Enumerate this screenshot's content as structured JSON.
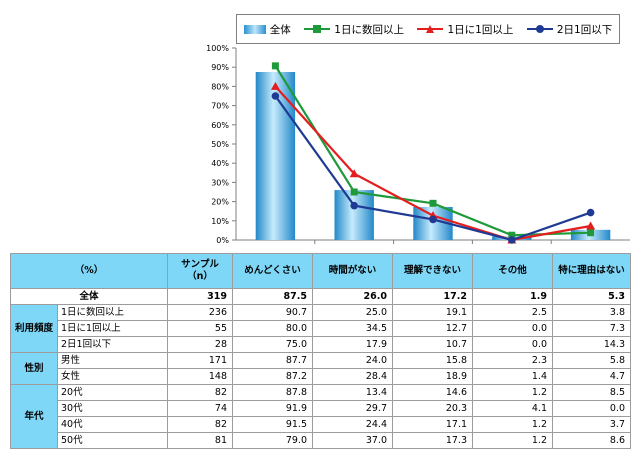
{
  "chart_data": {
    "type": "bar",
    "categories": [
      "めんどくさい",
      "時間がない",
      "理解できない",
      "その他",
      "特に理由はない"
    ],
    "ylim": [
      0,
      100
    ],
    "yticks": [
      "0%",
      "10%",
      "20%",
      "30%",
      "40%",
      "50%",
      "60%",
      "70%",
      "80%",
      "90%",
      "100%"
    ],
    "bar_series": {
      "name": "全体",
      "values": [
        87.5,
        26.0,
        17.2,
        1.9,
        5.3
      ]
    },
    "series": [
      {
        "name": "1日に数回以上",
        "values": [
          90.7,
          25.0,
          19.1,
          2.5,
          3.8
        ],
        "color": "#1e9a3a",
        "marker": "square"
      },
      {
        "name": "1日に1回以上",
        "values": [
          80.0,
          34.5,
          12.7,
          0.0,
          7.3
        ],
        "color": "#e41e1e",
        "marker": "triangle"
      },
      {
        "name": "2日1回以下",
        "values": [
          75.0,
          17.9,
          10.7,
          0.0,
          14.3
        ],
        "color": "#1f3a93",
        "marker": "circle"
      }
    ],
    "legend_position": "top",
    "grid": false
  },
  "table": {
    "header": {
      "unit": "（%）",
      "sample": "サンプル\n（n）",
      "cols": [
        "めんどくさい",
        "時間がない",
        "理解できない",
        "その他",
        "特に理由はない"
      ]
    },
    "total": {
      "label": "全体",
      "n": "319",
      "values": [
        "87.5",
        "26.0",
        "17.2",
        "1.9",
        "5.3"
      ]
    },
    "groups": [
      {
        "label": "利用頻度",
        "rows": [
          {
            "label": "1日に数回以上",
            "n": "236",
            "values": [
              "90.7",
              "25.0",
              "19.1",
              "2.5",
              "3.8"
            ]
          },
          {
            "label": "1日に1回以上",
            "n": "55",
            "values": [
              "80.0",
              "34.5",
              "12.7",
              "0.0",
              "7.3"
            ]
          },
          {
            "label": "2日1回以下",
            "n": "28",
            "values": [
              "75.0",
              "17.9",
              "10.7",
              "0.0",
              "14.3"
            ]
          }
        ]
      },
      {
        "label": "性別",
        "rows": [
          {
            "label": "男性",
            "n": "171",
            "values": [
              "87.7",
              "24.0",
              "15.8",
              "2.3",
              "5.8"
            ]
          },
          {
            "label": "女性",
            "n": "148",
            "values": [
              "87.2",
              "28.4",
              "18.9",
              "1.4",
              "4.7"
            ]
          }
        ]
      },
      {
        "label": "年代",
        "rows": [
          {
            "label": "20代",
            "n": "82",
            "values": [
              "87.8",
              "13.4",
              "14.6",
              "1.2",
              "8.5"
            ]
          },
          {
            "label": "30代",
            "n": "74",
            "values": [
              "91.9",
              "29.7",
              "20.3",
              "4.1",
              "0.0"
            ]
          },
          {
            "label": "40代",
            "n": "82",
            "values": [
              "91.5",
              "24.4",
              "17.1",
              "1.2",
              "3.7"
            ]
          },
          {
            "label": "50代",
            "n": "81",
            "values": [
              "79.0",
              "37.0",
              "17.3",
              "1.2",
              "8.6"
            ]
          }
        ]
      }
    ]
  }
}
